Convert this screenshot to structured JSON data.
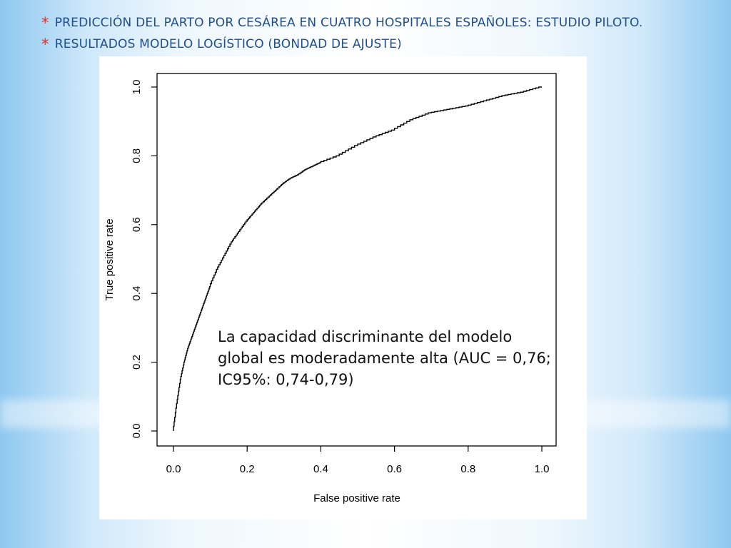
{
  "slide": {
    "bullet_glyph": "*",
    "line1": "PREDICCIÓN DEL PARTO POR CESÁREA EN CUATRO HOSPITALES ESPAÑOLES: ESTUDIO PILOTO.",
    "line2": "RESULTADOS MODELO LOGÍSTICO (BONDAD DE AJUSTE)",
    "callout": " La capacidad discriminante del modelo global es moderadamente alta (AUC = 0,76; IC95%: 0,74-0,79)"
  },
  "chart_data": {
    "type": "line",
    "title": "",
    "xlabel": "False positive rate",
    "ylabel": "True positive rate",
    "xlim": [
      0,
      1
    ],
    "ylim": [
      0,
      1
    ],
    "x_ticks": [
      "0.0",
      "0.2",
      "0.4",
      "0.6",
      "0.8",
      "1.0"
    ],
    "y_ticks": [
      "0.0",
      "0.2",
      "0.4",
      "0.6",
      "0.8",
      "1.0"
    ],
    "grid": false,
    "series": [
      {
        "name": "",
        "x": [
          0.0,
          0.01,
          0.02,
          0.03,
          0.04,
          0.05,
          0.06,
          0.07,
          0.08,
          0.09,
          0.1,
          0.12,
          0.14,
          0.16,
          0.18,
          0.2,
          0.22,
          0.24,
          0.26,
          0.28,
          0.3,
          0.32,
          0.34,
          0.36,
          0.38,
          0.4,
          0.45,
          0.5,
          0.55,
          0.6,
          0.65,
          0.7,
          0.75,
          0.8,
          0.85,
          0.9,
          0.95,
          1.0
        ],
        "y": [
          0.0,
          0.08,
          0.15,
          0.2,
          0.24,
          0.27,
          0.3,
          0.33,
          0.36,
          0.39,
          0.42,
          0.47,
          0.51,
          0.55,
          0.58,
          0.61,
          0.635,
          0.66,
          0.68,
          0.7,
          0.72,
          0.735,
          0.745,
          0.76,
          0.77,
          0.78,
          0.8,
          0.83,
          0.855,
          0.875,
          0.905,
          0.925,
          0.935,
          0.945,
          0.96,
          0.975,
          0.985,
          1.0
        ]
      }
    ]
  },
  "colors": {
    "title_text": "#1f4e8c",
    "bullet": "#d9342b",
    "curve": "#000000"
  }
}
